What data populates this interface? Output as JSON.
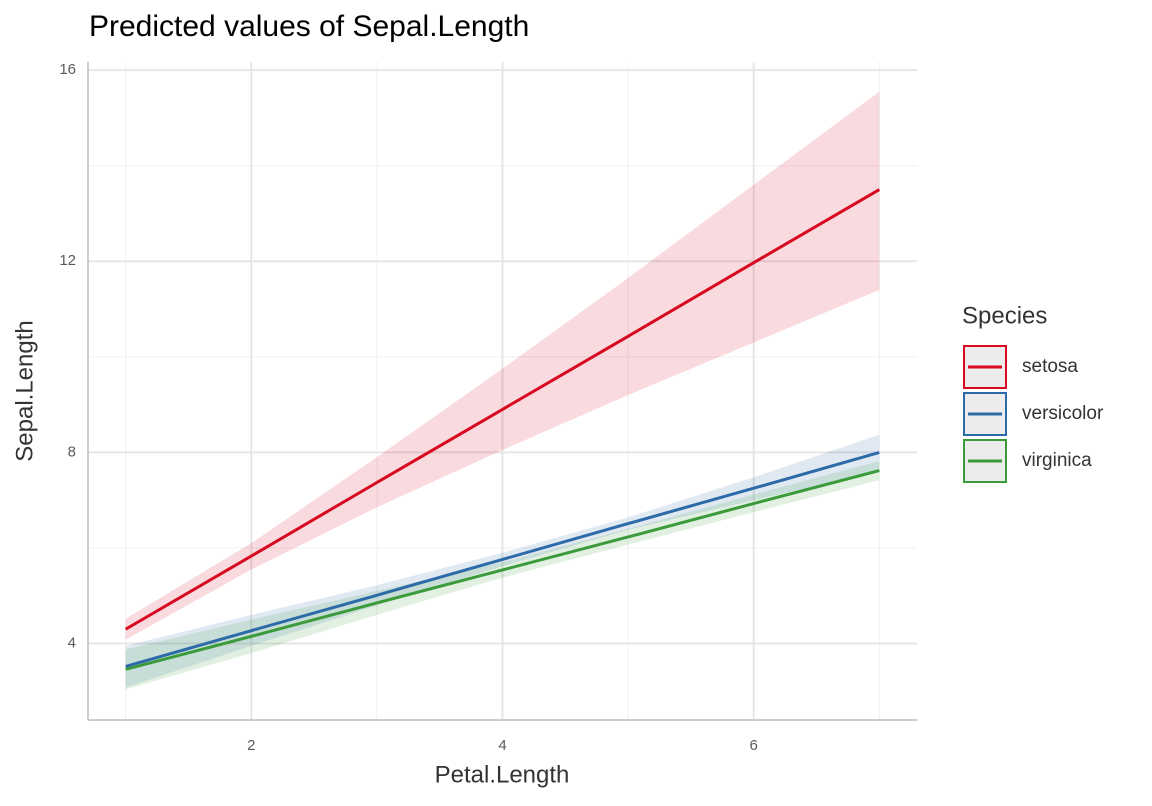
{
  "chart_data": {
    "type": "line",
    "title": "Predicted values of Sepal.Length",
    "x_label": "Petal.Length",
    "y_label": "Sepal.Length",
    "x": [
      1,
      2,
      3,
      4,
      5,
      6,
      7
    ],
    "series": [
      {
        "name": "setosa",
        "color": "#d7081f",
        "values": [
          4.3,
          5.83,
          7.37,
          8.9,
          10.43,
          11.97,
          13.5
        ],
        "lower": [
          4.08,
          5.55,
          6.85,
          8.05,
          9.2,
          10.3,
          11.4
        ],
        "upper": [
          4.52,
          6.1,
          7.9,
          9.75,
          11.65,
          13.6,
          15.55
        ]
      },
      {
        "name": "versicolor",
        "color": "#2c6aa8",
        "values": [
          3.52,
          4.27,
          5.01,
          5.76,
          6.51,
          7.25,
          8.0
        ],
        "lower": [
          3.08,
          3.95,
          4.8,
          5.62,
          6.38,
          7.0,
          7.6
        ],
        "upper": [
          3.95,
          4.6,
          5.22,
          5.9,
          6.64,
          7.48,
          8.37
        ]
      },
      {
        "name": "virginica",
        "color": "#3b9b3b",
        "values": [
          3.46,
          4.15,
          4.85,
          5.54,
          6.23,
          6.93,
          7.62
        ],
        "lower": [
          3.04,
          3.8,
          4.6,
          5.38,
          6.07,
          6.75,
          7.42
        ],
        "upper": [
          3.88,
          4.5,
          5.1,
          5.7,
          6.4,
          7.12,
          7.82
        ]
      }
    ],
    "legend_title": "Species",
    "xlim": [
      0.7,
      7.3
    ],
    "ylim": [
      2.4,
      16.17
    ],
    "xticks": [
      2,
      4,
      6
    ],
    "yticks": [
      4,
      8,
      12,
      16
    ],
    "x_minor_grid": [
      1,
      3,
      5,
      7
    ],
    "y_minor_grid": [
      6,
      10,
      14
    ],
    "grid": true,
    "legend_position": "right"
  }
}
